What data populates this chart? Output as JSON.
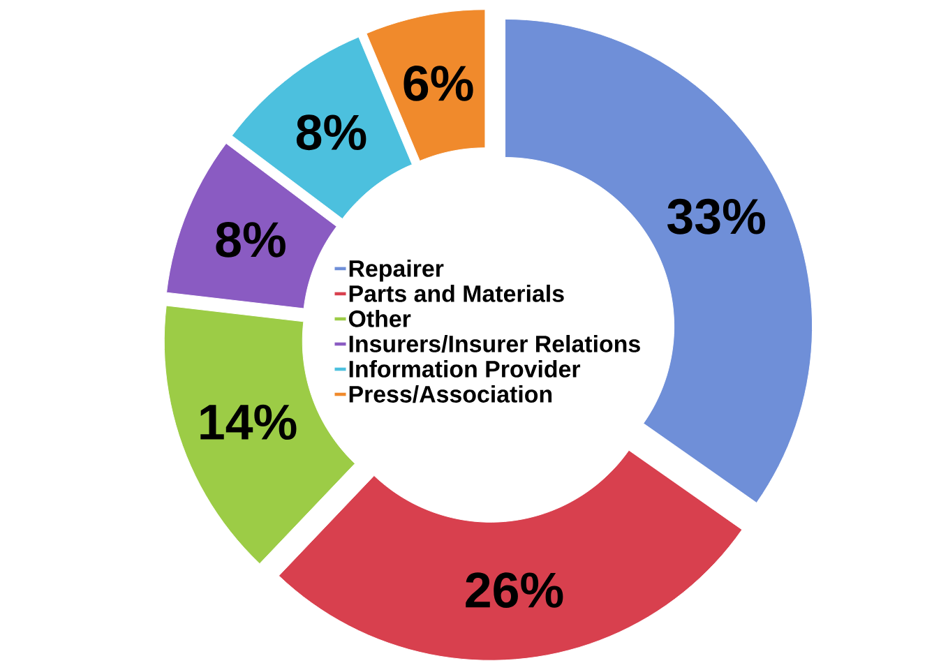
{
  "chart_data": {
    "type": "donut",
    "categories": [
      "Repairer",
      "Parts and Materials",
      "Other",
      "Insurers/Insurer Relations",
      "Information Provider",
      "Press/Association"
    ],
    "values": [
      33,
      26,
      14,
      8,
      8,
      6
    ],
    "value_labels": [
      "33%",
      "26%",
      "14%",
      "8%",
      "8%",
      "6%"
    ],
    "colors": [
      "#6f8fd8",
      "#d8404e",
      "#9ccc46",
      "#8a5bc2",
      "#4cc0de",
      "#f08a2c"
    ],
    "legend": "center"
  }
}
